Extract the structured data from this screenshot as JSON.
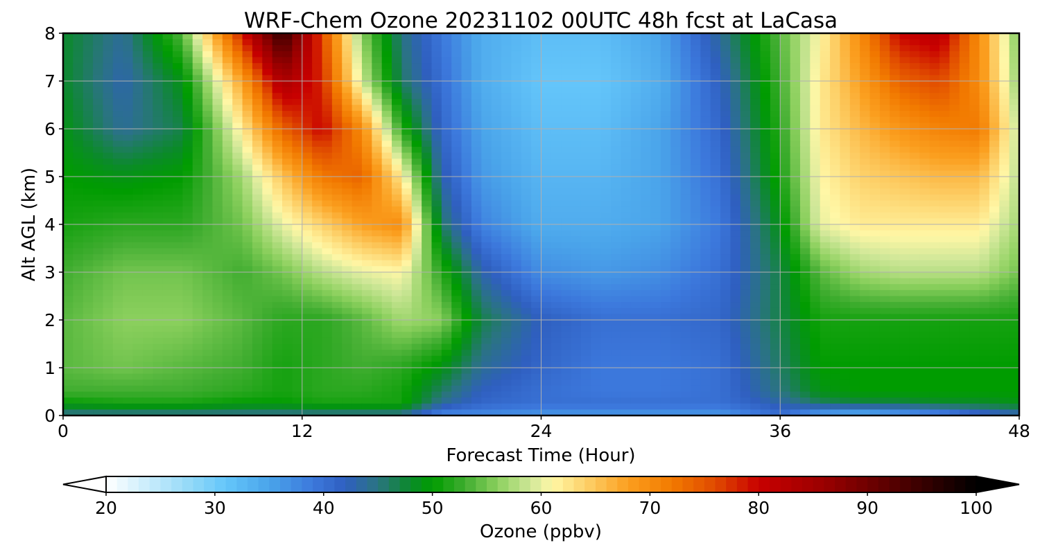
{
  "chart_data": {
    "type": "heatmap",
    "title": "WRF-Chem Ozone  20231102 00UTC 48h fcst at LaCasa",
    "xlabel": "Forecast Time (Hour)",
    "ylabel": "Alt AGL (km)",
    "xlim": [
      0,
      48
    ],
    "ylim": [
      0,
      8
    ],
    "xticks": [
      0,
      12,
      24,
      36,
      48
    ],
    "yticks": [
      0,
      1,
      2,
      3,
      4,
      5,
      6,
      7,
      8
    ],
    "grid": true,
    "x_hours": [
      0,
      3,
      6,
      9,
      11,
      13,
      15,
      17,
      19,
      21,
      24,
      27,
      30,
      33,
      36,
      38,
      40,
      42,
      44,
      46,
      48
    ],
    "y_km": [
      0,
      0.25,
      0.5,
      1,
      2,
      3,
      4,
      5,
      6,
      7,
      8
    ],
    "z_ppbv": [
      [
        44,
        44,
        44,
        44,
        44,
        44,
        44,
        44,
        37,
        37,
        36,
        36,
        36,
        36,
        40,
        34,
        32,
        34,
        36,
        40,
        42
      ],
      [
        50,
        51,
        51,
        50,
        50,
        51,
        51,
        51,
        44,
        41,
        40,
        40,
        40,
        40,
        43,
        46,
        47,
        47,
        48,
        48,
        49
      ],
      [
        53,
        53,
        53,
        52,
        51,
        52,
        52,
        51,
        46,
        42,
        40,
        39,
        39,
        40,
        45,
        49,
        50,
        50,
        50,
        50,
        50
      ],
      [
        54,
        55,
        54,
        53,
        51,
        52,
        53,
        52,
        49,
        44,
        41,
        39,
        39,
        40,
        46,
        50,
        50,
        50,
        50,
        50,
        50
      ],
      [
        54,
        56,
        56,
        54,
        52,
        52,
        54,
        57,
        56,
        47,
        42,
        40,
        40,
        41,
        47,
        51,
        51,
        51,
        51,
        51,
        51
      ],
      [
        53,
        55,
        55,
        53,
        55,
        58,
        60,
        61,
        52,
        43,
        37,
        36,
        37,
        40,
        47,
        54,
        57,
        58,
        58,
        58,
        55
      ],
      [
        51,
        52,
        52,
        55,
        60,
        64,
        68,
        70,
        46,
        38,
        34,
        34,
        35,
        39,
        49,
        60,
        62,
        62,
        62,
        62,
        57
      ],
      [
        50,
        49,
        50,
        57,
        65,
        72,
        74,
        62,
        43,
        36,
        33,
        33,
        35,
        40,
        51,
        61,
        64,
        65,
        66,
        66,
        58
      ],
      [
        49,
        44,
        47,
        62,
        74,
        80,
        70,
        52,
        41,
        35,
        32,
        32,
        35,
        41,
        52,
        62,
        66,
        69,
        71,
        72,
        58
      ],
      [
        48,
        43,
        49,
        68,
        84,
        78,
        59,
        46,
        40,
        34,
        31,
        31,
        34,
        42,
        53,
        62,
        68,
        74,
        76,
        70,
        56
      ],
      [
        48,
        44,
        54,
        79,
        96,
        76,
        56,
        45,
        39,
        34,
        32,
        32,
        35,
        44,
        54,
        61,
        70,
        80,
        82,
        70,
        55
      ]
    ],
    "colorbar": {
      "label": "Ozone  (ppbv)",
      "ticks": [
        20,
        30,
        40,
        50,
        60,
        70,
        80,
        90,
        100
      ],
      "min": 20,
      "max": 100,
      "extend": "both",
      "stops": [
        [
          20,
          "#ffffff"
        ],
        [
          28,
          "#8fd8f8"
        ],
        [
          31,
          "#64c6fa"
        ],
        [
          35,
          "#4aa4ea"
        ],
        [
          39,
          "#3c78dc"
        ],
        [
          42,
          "#2f5fc0"
        ],
        [
          45,
          "#2a7480"
        ],
        [
          48,
          "#0b8a2a"
        ],
        [
          50,
          "#009c00"
        ],
        [
          53,
          "#40ad30"
        ],
        [
          56,
          "#8cd05e"
        ],
        [
          59,
          "#cfe798"
        ],
        [
          61,
          "#fff7a6"
        ],
        [
          64,
          "#fdd26b"
        ],
        [
          68,
          "#fb9f1f"
        ],
        [
          72,
          "#f27a00"
        ],
        [
          76,
          "#e04a00"
        ],
        [
          80,
          "#c80000"
        ],
        [
          86,
          "#9a0000"
        ],
        [
          92,
          "#5a0000"
        ],
        [
          100,
          "#000000"
        ]
      ]
    }
  }
}
